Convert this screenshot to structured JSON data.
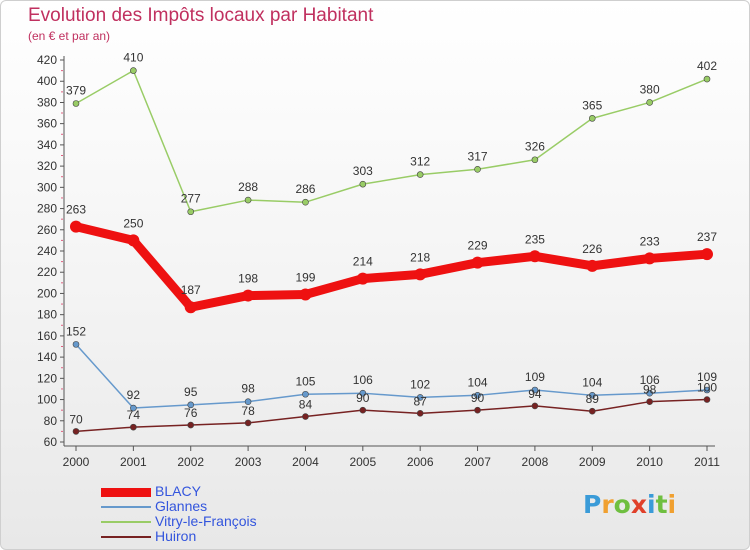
{
  "header": {
    "title": "Evolution des Impôts locaux par Habitant",
    "subtitle": "(en € et par an)"
  },
  "logo": {
    "letters": [
      "P",
      "r",
      "o",
      "x",
      "i",
      "t",
      "i"
    ],
    "colors": [
      "#3a9bd8",
      "#f0a030",
      "#6fbf40",
      "#e0402a",
      "#3a9bd8",
      "#6fbf40",
      "#f0a030"
    ]
  },
  "colors": {
    "title": "#c0305f",
    "axis": "#555555",
    "grid_dots": "#e06080"
  },
  "chart_data": {
    "type": "line",
    "title": "Evolution des Impôts locaux par Habitant",
    "subtitle": "(en € et par an)",
    "x": [
      "2000",
      "2001",
      "2002",
      "2003",
      "2004",
      "2005",
      "2006",
      "2007",
      "2008",
      "2009",
      "2010",
      "2011"
    ],
    "ylim": [
      60,
      420
    ],
    "yticks": [
      60,
      80,
      100,
      120,
      140,
      160,
      180,
      200,
      220,
      240,
      260,
      280,
      300,
      320,
      340,
      360,
      380,
      400,
      420
    ],
    "legend_position": "bottom-left",
    "series": [
      {
        "name": "BLACY",
        "color": "#ee1111",
        "width": 9,
        "marker": 6,
        "values": [
          263,
          250,
          187,
          198,
          199,
          214,
          218,
          229,
          235,
          226,
          233,
          237
        ]
      },
      {
        "name": "Glannes",
        "color": "#6699cc",
        "width": 1.5,
        "marker": 3,
        "values": [
          152,
          92,
          95,
          98,
          105,
          106,
          102,
          104,
          109,
          104,
          106,
          109
        ]
      },
      {
        "name": "Vitry-le-François",
        "color": "#99cc66",
        "width": 1.5,
        "marker": 3,
        "values": [
          379,
          410,
          277,
          288,
          286,
          303,
          312,
          317,
          326,
          365,
          380,
          402
        ]
      },
      {
        "name": "Huiron",
        "color": "#772222",
        "width": 1.5,
        "marker": 3,
        "values": [
          70,
          74,
          76,
          78,
          84,
          90,
          87,
          90,
          94,
          89,
          98,
          100
        ]
      }
    ]
  }
}
